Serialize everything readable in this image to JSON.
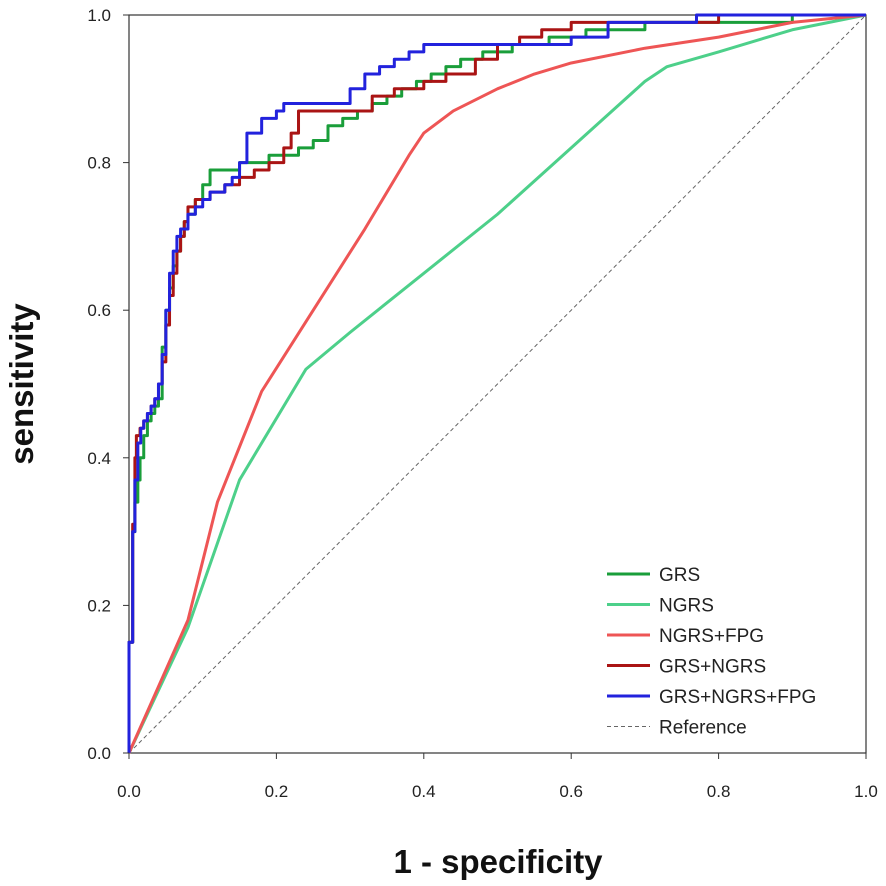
{
  "chart_data": {
    "type": "line",
    "title": "",
    "xlabel": "1 - specificity",
    "ylabel": "sensitivity",
    "xlim": [
      0,
      1
    ],
    "ylim": [
      0,
      1
    ],
    "xticks": [
      "0.0",
      "0.2",
      "0.4",
      "0.6",
      "0.8",
      "1.0"
    ],
    "yticks": [
      "0.0",
      "0.2",
      "0.4",
      "0.6",
      "0.8",
      "1.0"
    ],
    "grid": false,
    "legend_position": "bottom-right",
    "series": [
      {
        "name": "GRS",
        "color": "#1a9e3a",
        "step": true,
        "x": [
          0,
          0.005,
          0.008,
          0.012,
          0.015,
          0.02,
          0.025,
          0.03,
          0.035,
          0.04,
          0.045,
          0.05,
          0.055,
          0.06,
          0.065,
          0.07,
          0.075,
          0.08,
          0.09,
          0.1,
          0.11,
          0.13,
          0.15,
          0.17,
          0.19,
          0.21,
          0.23,
          0.25,
          0.27,
          0.29,
          0.31,
          0.33,
          0.35,
          0.37,
          0.39,
          0.41,
          0.43,
          0.45,
          0.48,
          0.52,
          0.57,
          0.62,
          0.7,
          0.8,
          0.9,
          1.0
        ],
        "y": [
          0.15,
          0.3,
          0.34,
          0.37,
          0.4,
          0.43,
          0.45,
          0.46,
          0.47,
          0.48,
          0.55,
          0.6,
          0.63,
          0.66,
          0.68,
          0.7,
          0.72,
          0.73,
          0.75,
          0.77,
          0.79,
          0.79,
          0.8,
          0.8,
          0.81,
          0.81,
          0.82,
          0.83,
          0.85,
          0.86,
          0.87,
          0.88,
          0.89,
          0.9,
          0.91,
          0.92,
          0.93,
          0.94,
          0.95,
          0.96,
          0.97,
          0.98,
          0.99,
          0.99,
          1.0,
          1.0
        ]
      },
      {
        "name": "NGRS",
        "color": "#4dd08a",
        "step": false,
        "x": [
          0,
          0.08,
          0.15,
          0.24,
          0.3,
          0.4,
          0.5,
          0.6,
          0.7,
          0.73,
          0.8,
          0.9,
          1.0
        ],
        "y": [
          0,
          0.17,
          0.37,
          0.52,
          0.57,
          0.65,
          0.73,
          0.82,
          0.91,
          0.93,
          0.95,
          0.98,
          1.0
        ]
      },
      {
        "name": "NGRS+FPG",
        "color": "#ee5555",
        "step": false,
        "x": [
          0,
          0.04,
          0.08,
          0.12,
          0.18,
          0.25,
          0.32,
          0.38,
          0.4,
          0.44,
          0.5,
          0.55,
          0.6,
          0.7,
          0.8,
          0.85,
          0.9,
          1.0
        ],
        "y": [
          0,
          0.09,
          0.18,
          0.34,
          0.49,
          0.6,
          0.71,
          0.81,
          0.84,
          0.87,
          0.9,
          0.92,
          0.935,
          0.955,
          0.97,
          0.98,
          0.99,
          1.0
        ]
      },
      {
        "name": "GRS+NGRS",
        "color": "#aa1414",
        "step": true,
        "x": [
          0,
          0.005,
          0.008,
          0.01,
          0.015,
          0.02,
          0.025,
          0.03,
          0.035,
          0.04,
          0.045,
          0.05,
          0.055,
          0.06,
          0.065,
          0.07,
          0.075,
          0.08,
          0.09,
          0.1,
          0.11,
          0.13,
          0.15,
          0.17,
          0.19,
          0.21,
          0.22,
          0.23,
          0.3,
          0.33,
          0.36,
          0.4,
          0.43,
          0.47,
          0.5,
          0.53,
          0.56,
          0.6,
          0.7,
          0.8,
          0.9,
          1.0
        ],
        "y": [
          0.15,
          0.31,
          0.4,
          0.43,
          0.44,
          0.45,
          0.46,
          0.47,
          0.48,
          0.5,
          0.53,
          0.58,
          0.62,
          0.65,
          0.68,
          0.7,
          0.72,
          0.74,
          0.75,
          0.75,
          0.76,
          0.77,
          0.78,
          0.79,
          0.8,
          0.82,
          0.84,
          0.87,
          0.87,
          0.89,
          0.9,
          0.91,
          0.92,
          0.94,
          0.96,
          0.97,
          0.98,
          0.99,
          0.99,
          1.0,
          1.0,
          1.0
        ]
      },
      {
        "name": "GRS+NGRS+FPG",
        "color": "#2222dd",
        "step": true,
        "x": [
          0,
          0.005,
          0.008,
          0.012,
          0.016,
          0.02,
          0.025,
          0.03,
          0.035,
          0.04,
          0.045,
          0.05,
          0.055,
          0.06,
          0.065,
          0.07,
          0.08,
          0.09,
          0.1,
          0.11,
          0.12,
          0.13,
          0.14,
          0.15,
          0.16,
          0.18,
          0.2,
          0.21,
          0.22,
          0.23,
          0.24,
          0.3,
          0.32,
          0.34,
          0.36,
          0.38,
          0.4,
          0.43,
          0.6,
          0.65,
          0.7,
          0.76,
          0.77,
          1.0
        ],
        "y": [
          0.15,
          0.3,
          0.37,
          0.42,
          0.44,
          0.45,
          0.46,
          0.47,
          0.48,
          0.5,
          0.54,
          0.6,
          0.65,
          0.68,
          0.7,
          0.71,
          0.73,
          0.74,
          0.75,
          0.76,
          0.76,
          0.77,
          0.78,
          0.8,
          0.84,
          0.86,
          0.87,
          0.88,
          0.88,
          0.88,
          0.88,
          0.9,
          0.92,
          0.93,
          0.94,
          0.95,
          0.96,
          0.96,
          0.97,
          0.99,
          0.99,
          0.99,
          1.0,
          1.0
        ]
      },
      {
        "name": "Reference",
        "color": "#666666",
        "step": false,
        "dashed": true,
        "x": [
          0,
          1
        ],
        "y": [
          0,
          1
        ]
      }
    ]
  }
}
